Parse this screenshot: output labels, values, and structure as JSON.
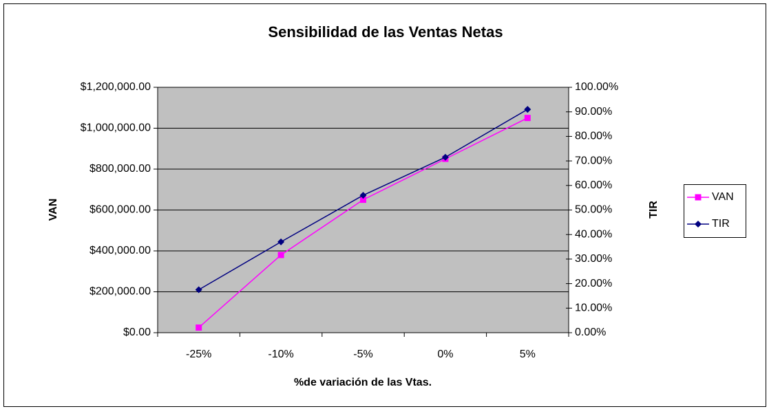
{
  "chart_data": {
    "type": "line",
    "title": "Sensibilidad de las Ventas Netas",
    "xlabel": "%de variación de las Vtas.",
    "ylabel": "VAN",
    "y2label": "TIR",
    "categories": [
      "-25%",
      "-10%",
      "-5%",
      "0%",
      "5%"
    ],
    "series": [
      {
        "name": "VAN",
        "color": "#ff00ff",
        "marker": "square",
        "values": [
          25000,
          380000,
          650000,
          850000,
          1050000
        ]
      },
      {
        "name": "TIR",
        "color": "#000080",
        "marker": "diamond",
        "axis": "y2",
        "values": [
          17.5,
          37,
          56,
          71.5,
          91
        ]
      }
    ],
    "ylim": [
      0,
      1200000
    ],
    "yticks": [
      {
        "value": 0,
        "label": "$0.00"
      },
      {
        "value": 200000,
        "label": "$200,000.00"
      },
      {
        "value": 400000,
        "label": "$400,000.00"
      },
      {
        "value": 600000,
        "label": "$600,000.00"
      },
      {
        "value": 800000,
        "label": "$800,000.00"
      },
      {
        "value": 1000000,
        "label": "$1,000,000.00"
      },
      {
        "value": 1200000,
        "label": "$1,200,000.00"
      }
    ],
    "y2lim": [
      0,
      100
    ],
    "y2ticks": [
      {
        "value": 0,
        "label": "0.00%"
      },
      {
        "value": 10,
        "label": "10.00%"
      },
      {
        "value": 20,
        "label": "20.00%"
      },
      {
        "value": 30,
        "label": "30.00%"
      },
      {
        "value": 40,
        "label": "40.00%"
      },
      {
        "value": 50,
        "label": "50.00%"
      },
      {
        "value": 60,
        "label": "60.00%"
      },
      {
        "value": 70,
        "label": "70.00%"
      },
      {
        "value": 80,
        "label": "80.00%"
      },
      {
        "value": 90,
        "label": "90.00%"
      },
      {
        "value": 100,
        "label": "100.00%"
      }
    ],
    "grid": true,
    "legend": "right"
  }
}
